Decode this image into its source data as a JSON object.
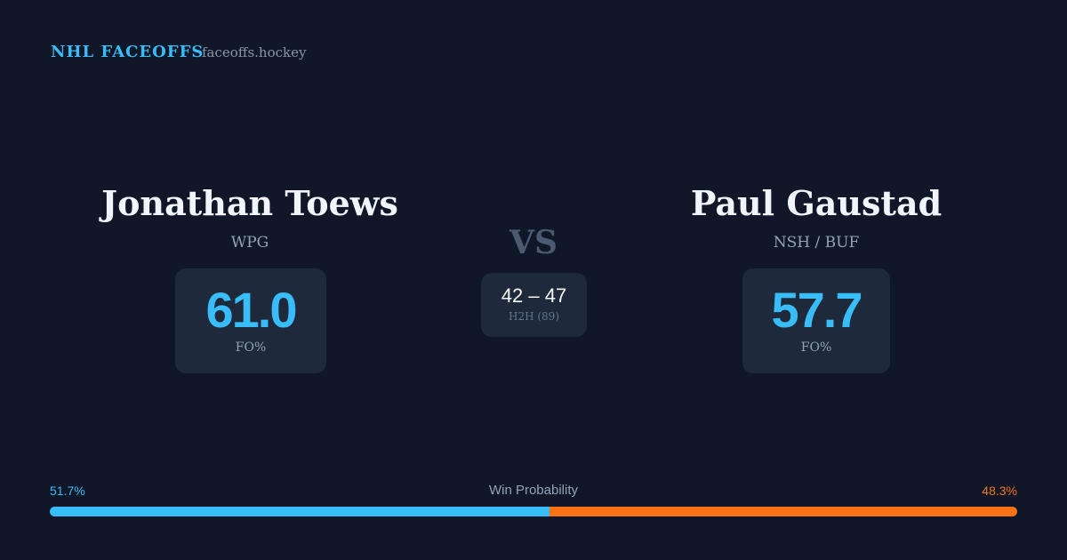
{
  "header": {
    "brand": "NHL FACEOFFS",
    "site": "faceoffs.hockey"
  },
  "players": [
    {
      "name": "Jonathan Toews",
      "team": "WPG",
      "fo_pct": "61.0",
      "fo_label": "FO%"
    },
    {
      "name": "Paul Gaustad",
      "team": "NSH / BUF",
      "fo_pct": "57.7",
      "fo_label": "FO%"
    }
  ],
  "versus": "VS",
  "h2h": {
    "score": "42 – 47",
    "label": "H2H (89)"
  },
  "win_probability": {
    "title": "Win Probability",
    "values": [
      51.7,
      48.3
    ],
    "value_labels": [
      "51.7%",
      "48.3%"
    ]
  }
}
